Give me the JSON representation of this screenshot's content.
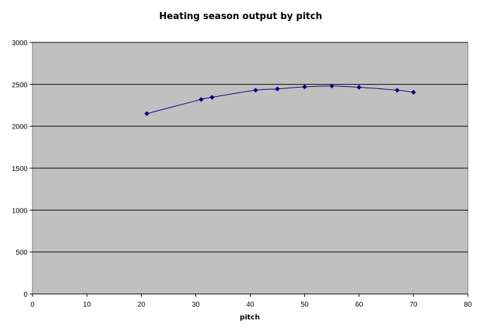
{
  "chart_data": {
    "type": "scatter",
    "title": "Heating season output by pitch",
    "xlabel": "pitch",
    "ylabel": "",
    "xlim": [
      0,
      80
    ],
    "ylim": [
      0,
      3000
    ],
    "x_ticks": [
      "0",
      "10",
      "20",
      "30",
      "40",
      "50",
      "60",
      "70",
      "80"
    ],
    "y_ticks": [
      "0",
      "500",
      "1000",
      "1500",
      "2000",
      "2500",
      "3000"
    ],
    "grid": "horizontal",
    "smoothed_line": true,
    "series": [
      {
        "x": [
          21,
          31,
          33,
          41,
          45,
          50,
          55,
          60,
          67,
          70
        ],
        "y": [
          2150,
          2320,
          2345,
          2430,
          2445,
          2470,
          2480,
          2465,
          2430,
          2405
        ]
      }
    ]
  },
  "colors": {
    "plot_background": "#c0c0c0",
    "series": "#000080",
    "grid": "#000000"
  }
}
